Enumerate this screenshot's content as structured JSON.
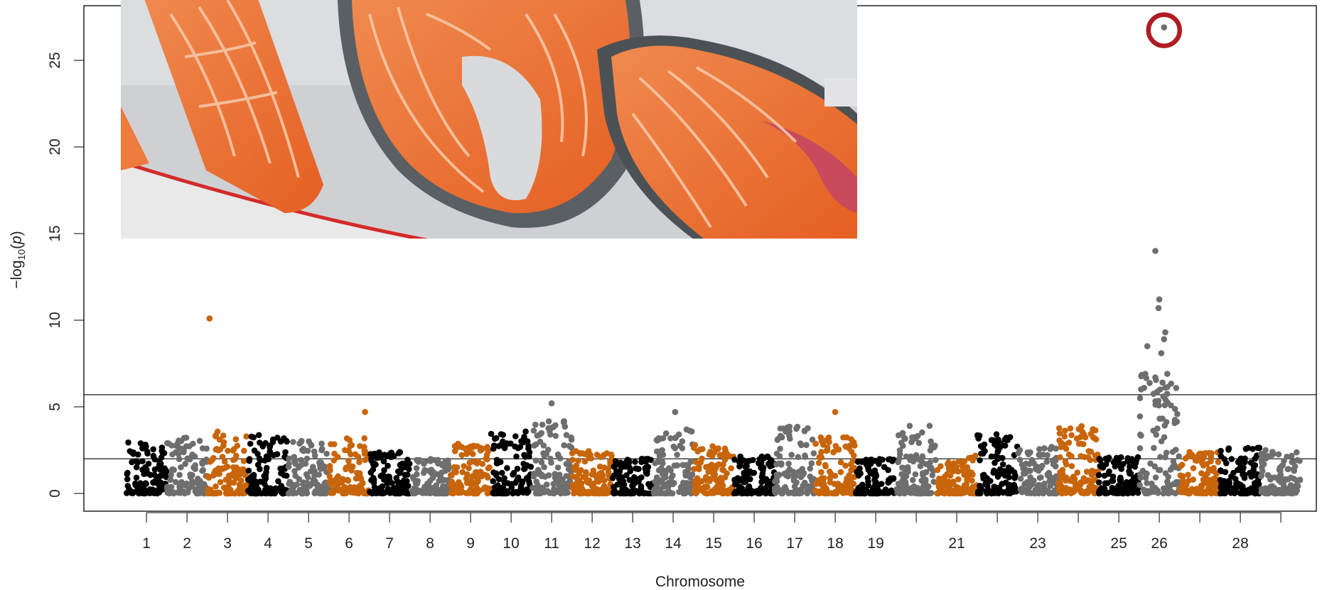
{
  "chart_data": {
    "type": "scatter",
    "subtype": "manhattan",
    "xlabel": "Chromosome",
    "ylabel_parts": {
      "minus": "−",
      "log": "log",
      "sub": "10",
      "paren_open": "(",
      "p": "p",
      "paren_close": ")"
    },
    "ylim": [
      0,
      28
    ],
    "yticks": [
      0,
      5,
      10,
      15,
      20,
      25
    ],
    "threshold_lines": [
      5.7,
      2.0
    ],
    "grid": false,
    "legend": "none",
    "colors_cycle": [
      "#000000",
      "#6e6e6e",
      "#c8650a"
    ],
    "highlight_color": "#b01c24",
    "tick_chromosomes": [
      1,
      2,
      3,
      4,
      5,
      6,
      7,
      8,
      9,
      10,
      11,
      12,
      13,
      14,
      15,
      16,
      17,
      18,
      19,
      21,
      23,
      25,
      26,
      28
    ],
    "tick_label_values": [
      "1",
      "2",
      "3",
      "4",
      "5",
      "6",
      "7",
      "8",
      "9",
      "10",
      "11",
      "12",
      "13",
      "14",
      "15",
      "16",
      "17",
      "18",
      "19",
      "21",
      "23",
      "25",
      "26",
      "28"
    ],
    "chromosomes": [
      {
        "chr": 1,
        "color": 0,
        "max": 3.0
      },
      {
        "chr": 2,
        "color": 1,
        "max": 3.3
      },
      {
        "chr": 3,
        "color": 2,
        "max": 3.6
      },
      {
        "chr": 4,
        "color": 0,
        "max": 3.4
      },
      {
        "chr": 5,
        "color": 1,
        "max": 3.1
      },
      {
        "chr": 6,
        "color": 2,
        "max": 3.2
      },
      {
        "chr": 7,
        "color": 0,
        "max": 2.4
      },
      {
        "chr": 8,
        "color": 1,
        "max": 2.0
      },
      {
        "chr": 9,
        "color": 2,
        "max": 2.9
      },
      {
        "chr": 10,
        "color": 0,
        "max": 3.6
      },
      {
        "chr": 11,
        "color": 1,
        "max": 4.2
      },
      {
        "chr": 12,
        "color": 2,
        "max": 2.6
      },
      {
        "chr": 13,
        "color": 0,
        "max": 2.0
      },
      {
        "chr": 14,
        "color": 1,
        "max": 3.8
      },
      {
        "chr": 15,
        "color": 2,
        "max": 2.8
      },
      {
        "chr": 16,
        "color": 0,
        "max": 2.2
      },
      {
        "chr": 17,
        "color": 1,
        "max": 3.9
      },
      {
        "chr": 18,
        "color": 2,
        "max": 3.3
      },
      {
        "chr": 19,
        "color": 0,
        "max": 2.0
      },
      {
        "chr": 20,
        "color": 1,
        "max": 4.0
      },
      {
        "chr": 21,
        "color": 2,
        "max": 2.2
      },
      {
        "chr": 22,
        "color": 0,
        "max": 3.5
      },
      {
        "chr": 23,
        "color": 1,
        "max": 2.7
      },
      {
        "chr": 24,
        "color": 2,
        "max": 3.9
      },
      {
        "chr": 25,
        "color": 0,
        "max": 2.1
      },
      {
        "chr": 26,
        "color": 1,
        "max": 6.9
      },
      {
        "chr": 27,
        "color": 2,
        "max": 2.4
      },
      {
        "chr": 28,
        "color": 0,
        "max": 2.7
      },
      {
        "chr": 29,
        "color": 1,
        "max": 2.5
      }
    ],
    "outliers": [
      {
        "chr": 3,
        "pos": 0.05,
        "y": 10.1
      },
      {
        "chr": 3,
        "pos": 0.2,
        "y": 3.3
      },
      {
        "chr": 6,
        "pos": 0.9,
        "y": 4.7
      },
      {
        "chr": 11,
        "pos": 0.5,
        "y": 5.2
      },
      {
        "chr": 14,
        "pos": 0.55,
        "y": 4.7
      },
      {
        "chr": 18,
        "pos": 0.5,
        "y": 4.7
      },
      {
        "chr": 26,
        "pos": 0.2,
        "y": 8.5
      },
      {
        "chr": 26,
        "pos": 0.15,
        "y": 6.9
      },
      {
        "chr": 26,
        "pos": 0.4,
        "y": 14.0
      },
      {
        "chr": 26,
        "pos": 0.5,
        "y": 11.2
      },
      {
        "chr": 26,
        "pos": 0.48,
        "y": 10.7
      },
      {
        "chr": 26,
        "pos": 0.65,
        "y": 9.3
      },
      {
        "chr": 26,
        "pos": 0.62,
        "y": 8.9
      },
      {
        "chr": 26,
        "pos": 0.55,
        "y": 8.1
      },
      {
        "chr": 26,
        "pos": 0.7,
        "y": 6.9
      },
      {
        "chr": 26,
        "pos": 0.58,
        "y": 6.4
      },
      {
        "chr": 26,
        "pos": 0.52,
        "y": 6.0
      },
      {
        "chr": 26,
        "pos": 0.6,
        "y": 5.6
      },
      {
        "chr": 26,
        "pos": 0.62,
        "y": 26.9,
        "highlight": true
      }
    ]
  }
}
